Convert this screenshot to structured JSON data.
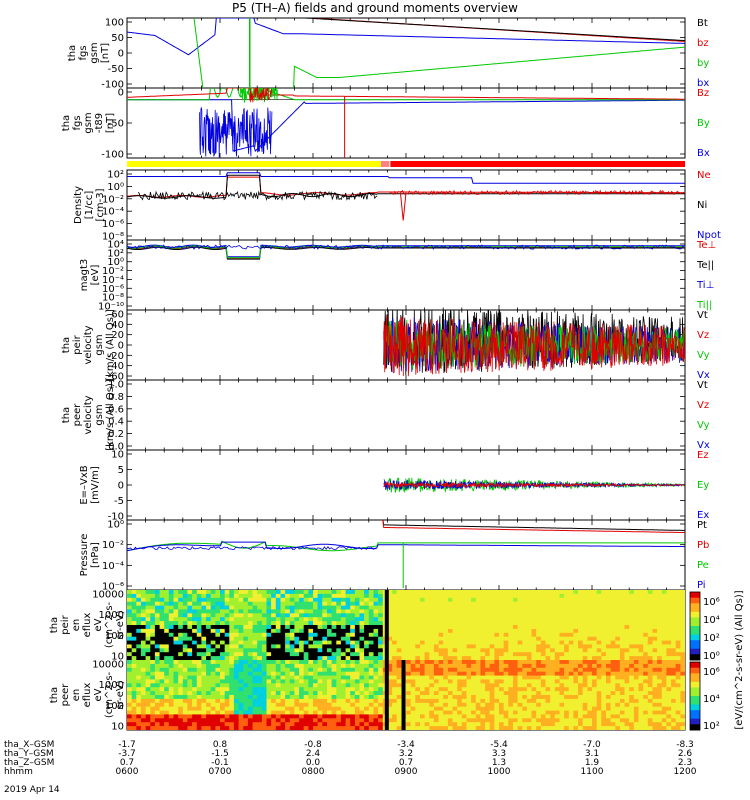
{
  "title": "P5 (TH–A) fields and ground moments overview",
  "footer_date": "2019 Apr 14",
  "colors": {
    "black": "#000000",
    "red": "#e00000",
    "green": "#00c800",
    "blue": "#0000e0",
    "yellow": "#ffff00",
    "barred": "#ff0000"
  },
  "chart_data": [
    {
      "type": "line",
      "ylabel_lines": [
        "tha",
        "fgs",
        "gsm",
        "[nT]"
      ],
      "ylim": [
        -100,
        100
      ],
      "yticks": [
        "100",
        "50",
        "0",
        "-50",
        "-100"
      ],
      "legend": [
        "Bt",
        "bz",
        "by",
        "bx"
      ],
      "legend_colors": [
        "#000000",
        "#e00000",
        "#00c800",
        "#0000e0"
      ]
    },
    {
      "type": "line",
      "ylabel_lines": [
        "tha",
        "fgs",
        "gsm",
        "-t89",
        "[nT]"
      ],
      "ylim": [
        -125,
        25
      ],
      "yticks": [
        "0",
        "-50",
        "-100"
      ],
      "legend": [
        "Bz",
        "By",
        "Bx"
      ],
      "legend_colors": [
        "#e00000",
        "#00c800",
        "#0000e0"
      ]
    },
    {
      "type": "line",
      "ylabel_lines": [
        "Density",
        "[1/cc]",
        "[cm-3]"
      ],
      "yscale": "log",
      "yticks": [
        "10²",
        "10⁰",
        "10⁻²",
        "10⁻⁴",
        "10⁻⁶",
        "10⁻⁸"
      ],
      "legend": [
        "Ne",
        "Ni",
        "Npot"
      ],
      "legend_colors": [
        "#e00000",
        "#000000",
        "#0000e0"
      ]
    },
    {
      "type": "line",
      "ylabel_lines": [
        "magt3",
        "[eV]"
      ],
      "yscale": "log",
      "yticks": [
        "10⁴",
        "10²",
        "10⁰",
        "10⁻²",
        "10⁻⁴",
        "10⁻⁶",
        "10⁻⁸",
        "10⁻¹⁰"
      ],
      "legend": [
        "Te⊥",
        "Te||",
        "Ti⊥",
        "Ti||"
      ],
      "legend_colors": [
        "#e00000",
        "#000000",
        "#0000e0",
        "#00c800"
      ]
    },
    {
      "type": "line",
      "ylabel_lines": [
        "tha",
        "peir",
        "velocity",
        "gsm",
        "[km/s (All Qs)]"
      ],
      "ylim": [
        -60,
        60
      ],
      "yticks": [
        "60",
        "40",
        "20",
        "0",
        "-20",
        "-40",
        "-60"
      ],
      "legend": [
        "Vt",
        "Vz",
        "Vy",
        "Vx"
      ],
      "legend_colors": [
        "#000000",
        "#e00000",
        "#00c800",
        "#0000e0"
      ]
    },
    {
      "type": "line",
      "ylabel_lines": [
        "tha",
        "peer",
        "velocity",
        "gsm",
        "[km/s (All Qs)]"
      ],
      "ylim": [
        0.0,
        1.0
      ],
      "yticks": [
        "1.0",
        "0.8",
        "0.6",
        "0.4",
        "0.2",
        "0.0"
      ],
      "legend": [
        "Vt",
        "Vz",
        "Vy",
        "Vx"
      ],
      "legend_colors": [
        "#000000",
        "#e00000",
        "#00c800",
        "#0000e0"
      ]
    },
    {
      "type": "line",
      "ylabel_lines": [
        "E=–VxB",
        "[mV/m]"
      ],
      "ylim": [
        -10,
        10
      ],
      "yticks": [
        "10",
        "5",
        "0",
        "-5",
        "-10"
      ],
      "legend": [
        "Ez",
        "Ey",
        "Ex"
      ],
      "legend_colors": [
        "#e00000",
        "#00c800",
        "#0000e0"
      ]
    },
    {
      "type": "line",
      "ylabel_lines": [
        "Pressure",
        "[nPa]"
      ],
      "yscale": "log",
      "yticks": [
        "10⁰",
        "10⁻²",
        "10⁻⁴",
        "10⁻⁶"
      ],
      "legend": [
        "Pt",
        "Pb",
        "Pe",
        "Pi"
      ],
      "legend_colors": [
        "#000000",
        "#e00000",
        "#00c800",
        "#0000e0"
      ]
    },
    {
      "type": "heatmap",
      "ylabel_lines": [
        "tha",
        "peir",
        "en",
        "eflux",
        "eV",
        "(cm^2-s-",
        "sr-eV)"
      ],
      "yscale": "log",
      "yticks": [
        "10000",
        "1000",
        "100",
        "10"
      ]
    },
    {
      "type": "heatmap",
      "ylabel_lines": [
        "tha",
        "peer",
        "en",
        "eflux",
        "eV",
        "(cm^2-s-",
        "sr-eV)"
      ],
      "yscale": "log",
      "yticks": [
        "10000",
        "1000",
        "100",
        "10"
      ]
    }
  ],
  "colorbars": {
    "label": "[eV/(cm^2-s-sr-eV) (All Qs)]",
    "top_ticks": [
      "10⁶",
      "10⁴",
      "10²",
      "10⁰"
    ],
    "bottom_ticks": [
      "10⁶",
      "10⁴",
      "10²"
    ]
  },
  "x_axis": {
    "row_labels": [
      "tha_X–GSM",
      "tha_Y–GSM",
      "tha_Z–GSM",
      "hhmm"
    ],
    "columns": [
      [
        "-1.7",
        "-3.7",
        "0.7",
        "0600"
      ],
      [
        "0.8",
        "-1.5",
        "-0.1",
        "0700"
      ],
      [
        "-0.8",
        "2.4",
        "0.0",
        "0800"
      ],
      [
        "-3.4",
        "3.2",
        "0.7",
        "0900"
      ],
      [
        "-5.4",
        "3.3",
        "1.3",
        "1000"
      ],
      [
        "-7.0",
        "3.1",
        "1.9",
        "1100"
      ],
      [
        "-8.3",
        "2.6",
        "2.3",
        "1200"
      ]
    ]
  }
}
